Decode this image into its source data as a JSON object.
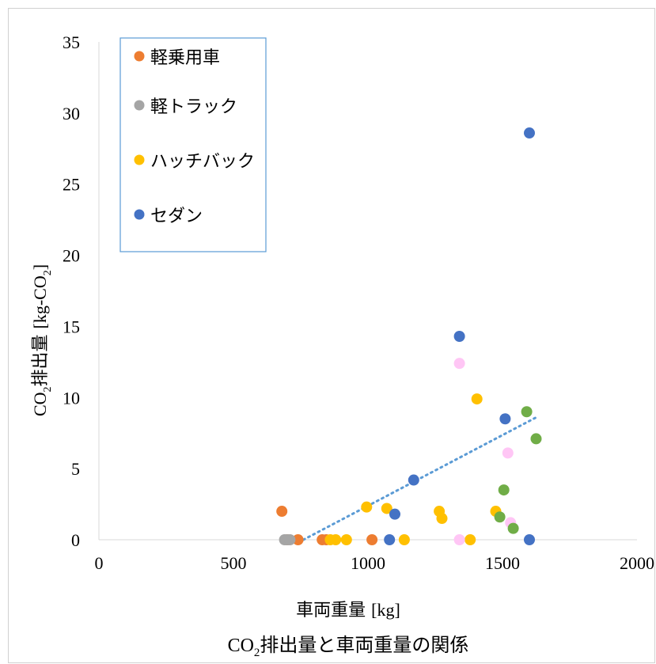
{
  "chart_data": {
    "type": "scatter",
    "title_prefix": "CO",
    "title_sub": "2",
    "title_rest": "排出量と車両重量の関係",
    "xlabel_main": "車両重量 ",
    "xlabel_unit": "[kg]",
    "ylabel_prefix": "CO",
    "ylabel_sub": "2",
    "ylabel_main": "排出量 ",
    "ylabel_unit_a": "[kg-CO",
    "ylabel_unit_sub": "2",
    "ylabel_unit_b": "]",
    "xlim": [
      0,
      2000
    ],
    "ylim": [
      0,
      35
    ],
    "x_ticks": [
      0,
      500,
      1000,
      1500,
      2000
    ],
    "x_tick_labels": [
      "0",
      "500",
      "1000",
      "1500",
      "2000"
    ],
    "y_ticks": [
      0,
      5,
      10,
      15,
      20,
      25,
      30,
      35
    ],
    "y_tick_labels": [
      "0",
      "5",
      "10",
      "15",
      "20",
      "25",
      "30",
      "35"
    ],
    "grid": false,
    "legend_position": "top-left",
    "series": [
      {
        "name": "軽乗用車",
        "color": "#ED7D31",
        "in_legend": true,
        "points": [
          [
            680,
            2.0
          ],
          [
            700,
            0.0
          ],
          [
            740,
            0.0
          ],
          [
            830,
            0.0
          ],
          [
            845,
            0.0
          ],
          [
            1015,
            0.0
          ]
        ]
      },
      {
        "name": "軽トラック",
        "color": "#A5A5A5",
        "in_legend": true,
        "points": [
          [
            690,
            0.0
          ],
          [
            700,
            0.0
          ],
          [
            710,
            0.0
          ]
        ]
      },
      {
        "name": "ハッチバック",
        "color": "#FFC000",
        "in_legend": true,
        "points": [
          [
            860,
            0.0
          ],
          [
            880,
            0.0
          ],
          [
            920,
            0.0
          ],
          [
            995,
            2.3
          ],
          [
            1070,
            2.2
          ],
          [
            1135,
            0.0
          ],
          [
            1265,
            2.0
          ],
          [
            1275,
            1.5
          ],
          [
            1380,
            0.0
          ],
          [
            1405,
            9.9
          ],
          [
            1475,
            2.0
          ]
        ]
      },
      {
        "name": "セダン",
        "color": "#4472C4",
        "in_legend": true,
        "points": [
          [
            1080,
            0.0
          ],
          [
            1100,
            1.8
          ],
          [
            1170,
            4.2
          ],
          [
            1340,
            14.3
          ],
          [
            1510,
            8.5
          ],
          [
            1600,
            28.6
          ],
          [
            1600,
            0.0
          ]
        ]
      },
      {
        "name": "",
        "color": "#FFC6F5",
        "in_legend": false,
        "points": [
          [
            1340,
            12.4
          ],
          [
            1340,
            0.0
          ],
          [
            1520,
            6.1
          ],
          [
            1530,
            1.2
          ]
        ]
      },
      {
        "name": "",
        "color": "#70AD47",
        "in_legend": false,
        "points": [
          [
            1490,
            1.6
          ],
          [
            1505,
            3.5
          ],
          [
            1590,
            9.0
          ],
          [
            1625,
            7.1
          ],
          [
            1540,
            0.8
          ]
        ]
      }
    ],
    "trendline": {
      "type": "linear",
      "color": "#5B9BD5",
      "style": "dotted",
      "x_start": 760,
      "y_start": 0.0,
      "x_end": 1625,
      "y_end": 8.6
    }
  }
}
